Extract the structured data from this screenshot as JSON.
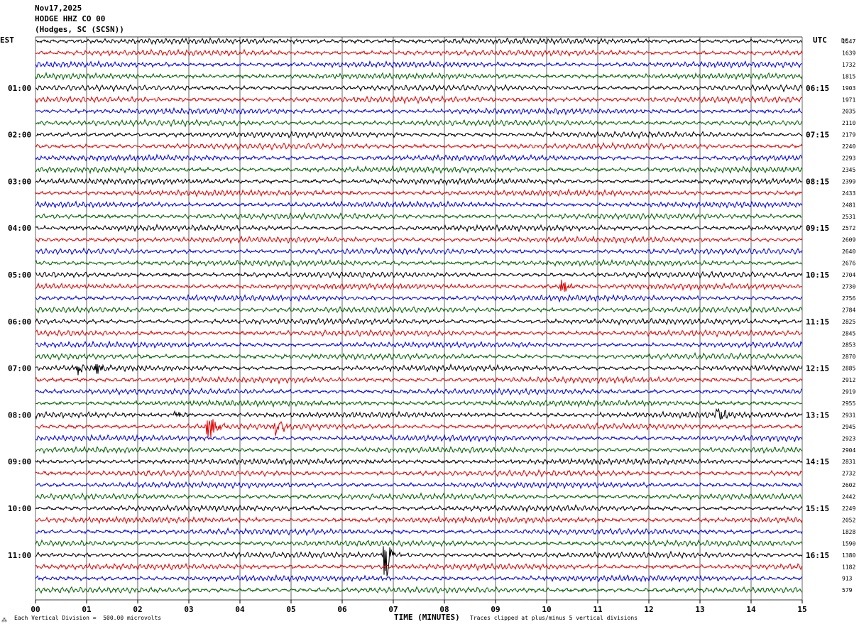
{
  "header": {
    "date": "Nov17,2025",
    "station": "HODGE HHZ CO 00",
    "location": "(Hodges, SC (SCSN))"
  },
  "left_tz": "EST",
  "right_tz": "UTC",
  "dc_label": "DC",
  "footer": {
    "scale_note": "Each Vertical Division =  500.00 microvolts",
    "clip_note": "Traces clipped at plus/minus 5 vertical divisions",
    "corner_mark": "⁂"
  },
  "colors": {
    "trace_cycle": [
      "#000000",
      "#e00000",
      "#0000e0",
      "#006000"
    ],
    "grid": "#000000"
  },
  "chart_data": {
    "type": "line",
    "title": "",
    "xlabel": "TIME (MINUTES)",
    "x_ticks": [
      "00",
      "01",
      "02",
      "03",
      "04",
      "05",
      "06",
      "07",
      "08",
      "09",
      "10",
      "11",
      "12",
      "13",
      "14",
      "15"
    ],
    "xlim": [
      0,
      15
    ],
    "rows": 48,
    "row_minutes": 15,
    "left_time_labels": [
      "01:00",
      "02:00",
      "03:00",
      "04:00",
      "05:00",
      "06:00",
      "07:00",
      "08:00",
      "09:00",
      "10:00",
      "11:00"
    ],
    "right_time_labels": [
      "06:15",
      "07:15",
      "08:15",
      "09:15",
      "10:15",
      "11:15",
      "12:15",
      "13:15",
      "14:15",
      "15:15",
      "16:15"
    ],
    "dc_offsets": [
      "1547",
      "1639",
      "1732",
      "1815",
      "1903",
      "1971",
      "2035",
      "2110",
      "2179",
      "2240",
      "2293",
      "2345",
      "2399",
      "2433",
      "2481",
      "2531",
      "2572",
      "2609",
      "2640",
      "2676",
      "2704",
      "2730",
      "2756",
      "2784",
      "2825",
      "2845",
      "2853",
      "2870",
      "2885",
      "2912",
      "2919",
      "2955",
      "2931",
      "2945",
      "2923",
      "2904",
      "2831",
      "2732",
      "2602",
      "2442",
      "2249",
      "2052",
      "1828",
      "1590",
      "1380",
      "1182",
      "913",
      "579"
    ],
    "events": [
      {
        "row": 21,
        "minute": 10.3,
        "amplitude": "medium"
      },
      {
        "row": 28,
        "minute": 0.85,
        "amplitude": "small"
      },
      {
        "row": 28,
        "minute": 1.2,
        "amplitude": "small"
      },
      {
        "row": 32,
        "minute": 2.75,
        "amplitude": "small"
      },
      {
        "row": 32,
        "minute": 13.35,
        "amplitude": "medium"
      },
      {
        "row": 33,
        "minute": 3.4,
        "amplitude": "large"
      },
      {
        "row": 33,
        "minute": 4.7,
        "amplitude": "medium"
      },
      {
        "row": 44,
        "minute": 6.85,
        "amplitude": "clipped"
      }
    ]
  }
}
